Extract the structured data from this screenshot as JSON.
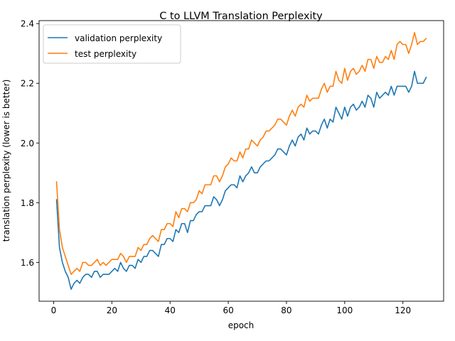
{
  "chart_data": {
    "type": "line",
    "title": "C to LLVM Translation Perplexity",
    "xlabel": "epoch",
    "ylabel": "translation perplexity (lower is better)",
    "xlim": [
      -5,
      134
    ],
    "ylim": [
      1.47,
      2.41
    ],
    "xticks": [
      0,
      20,
      40,
      60,
      80,
      100,
      120
    ],
    "yticks": [
      1.6,
      1.8,
      2.0,
      2.2,
      2.4
    ],
    "x_tick_labels": [
      "0",
      "20",
      "40",
      "60",
      "80",
      "100",
      "120"
    ],
    "y_tick_labels": [
      "1.6",
      "1.8",
      "2.0",
      "2.2",
      "2.4"
    ],
    "legend_position": "top-left",
    "grid": false,
    "x": [
      1,
      2,
      3,
      4,
      5,
      6,
      7,
      8,
      9,
      10,
      11,
      12,
      13,
      14,
      15,
      16,
      17,
      18,
      19,
      20,
      21,
      22,
      23,
      24,
      25,
      26,
      27,
      28,
      29,
      30,
      31,
      32,
      33,
      34,
      35,
      36,
      37,
      38,
      39,
      40,
      41,
      42,
      43,
      44,
      45,
      46,
      47,
      48,
      49,
      50,
      51,
      52,
      53,
      54,
      55,
      56,
      57,
      58,
      59,
      60,
      61,
      62,
      63,
      64,
      65,
      66,
      67,
      68,
      69,
      70,
      71,
      72,
      73,
      74,
      75,
      76,
      77,
      78,
      79,
      80,
      81,
      82,
      83,
      84,
      85,
      86,
      87,
      88,
      89,
      90,
      91,
      92,
      93,
      94,
      95,
      96,
      97,
      98,
      99,
      100,
      101,
      102,
      103,
      104,
      105,
      106,
      107,
      108,
      109,
      110,
      111,
      112,
      113,
      114,
      115,
      116,
      117,
      118,
      119,
      120,
      121,
      122,
      123,
      124,
      125,
      126,
      127,
      128
    ],
    "series": [
      {
        "name": "validation perplexity",
        "color": "#1f77b4",
        "values": [
          1.81,
          1.65,
          1.6,
          1.57,
          1.55,
          1.51,
          1.53,
          1.54,
          1.53,
          1.55,
          1.56,
          1.56,
          1.55,
          1.57,
          1.57,
          1.55,
          1.56,
          1.56,
          1.56,
          1.57,
          1.58,
          1.57,
          1.6,
          1.58,
          1.57,
          1.59,
          1.59,
          1.58,
          1.61,
          1.6,
          1.62,
          1.62,
          1.64,
          1.64,
          1.63,
          1.62,
          1.66,
          1.66,
          1.68,
          1.68,
          1.67,
          1.71,
          1.7,
          1.73,
          1.73,
          1.7,
          1.74,
          1.74,
          1.76,
          1.77,
          1.77,
          1.79,
          1.79,
          1.79,
          1.82,
          1.81,
          1.79,
          1.81,
          1.84,
          1.85,
          1.86,
          1.86,
          1.85,
          1.89,
          1.87,
          1.89,
          1.9,
          1.92,
          1.9,
          1.9,
          1.92,
          1.93,
          1.94,
          1.94,
          1.95,
          1.96,
          1.98,
          1.98,
          1.97,
          1.96,
          1.99,
          2.01,
          1.99,
          2.02,
          2.03,
          2.01,
          2.05,
          2.03,
          2.04,
          2.04,
          2.03,
          2.06,
          2.08,
          2.05,
          2.08,
          2.07,
          2.12,
          2.1,
          2.08,
          2.12,
          2.09,
          2.12,
          2.13,
          2.11,
          2.12,
          2.14,
          2.12,
          2.16,
          2.15,
          2.12,
          2.17,
          2.15,
          2.16,
          2.17,
          2.16,
          2.19,
          2.16,
          2.19,
          2.19,
          2.19,
          2.19,
          2.17,
          2.19,
          2.24,
          2.2,
          2.2,
          2.2,
          2.22
        ]
      },
      {
        "name": "test perplexity",
        "color": "#ff7f0e",
        "values": [
          1.87,
          1.71,
          1.65,
          1.62,
          1.59,
          1.56,
          1.57,
          1.58,
          1.57,
          1.6,
          1.6,
          1.59,
          1.59,
          1.6,
          1.61,
          1.59,
          1.6,
          1.59,
          1.6,
          1.61,
          1.61,
          1.61,
          1.63,
          1.62,
          1.6,
          1.62,
          1.62,
          1.62,
          1.65,
          1.64,
          1.66,
          1.66,
          1.68,
          1.69,
          1.68,
          1.67,
          1.71,
          1.71,
          1.73,
          1.73,
          1.72,
          1.77,
          1.75,
          1.78,
          1.78,
          1.77,
          1.8,
          1.8,
          1.81,
          1.84,
          1.83,
          1.86,
          1.86,
          1.86,
          1.89,
          1.89,
          1.87,
          1.89,
          1.92,
          1.93,
          1.95,
          1.94,
          1.94,
          1.97,
          1.95,
          1.98,
          1.98,
          2.01,
          2.0,
          1.99,
          2.01,
          2.02,
          2.04,
          2.04,
          2.05,
          2.06,
          2.08,
          2.08,
          2.07,
          2.06,
          2.09,
          2.11,
          2.09,
          2.12,
          2.13,
          2.12,
          2.16,
          2.14,
          2.15,
          2.15,
          2.15,
          2.18,
          2.2,
          2.17,
          2.19,
          2.19,
          2.24,
          2.21,
          2.2,
          2.25,
          2.21,
          2.24,
          2.25,
          2.23,
          2.24,
          2.26,
          2.24,
          2.28,
          2.28,
          2.25,
          2.29,
          2.27,
          2.27,
          2.29,
          2.28,
          2.31,
          2.28,
          2.33,
          2.34,
          2.33,
          2.33,
          2.3,
          2.33,
          2.37,
          2.33,
          2.34,
          2.34,
          2.35
        ]
      }
    ]
  }
}
